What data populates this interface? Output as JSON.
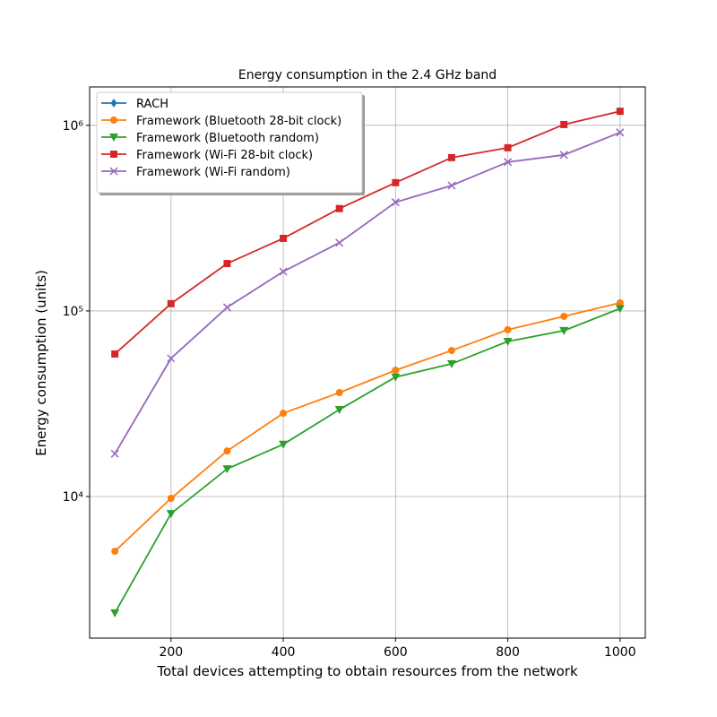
{
  "chart_data": {
    "type": "line",
    "title": "Energy consumption in the 2.4 GHz band",
    "x_label": "Total devices attempting to obtain resources from the network",
    "y_label": "Energy consumption (units)",
    "x": [
      100,
      200,
      300,
      400,
      500,
      600,
      700,
      800,
      900,
      1000
    ],
    "xlim": [
      55,
      1045
    ],
    "xticks": [
      200,
      400,
      600,
      800,
      1000
    ],
    "ylim": [
      1726,
      1610000
    ],
    "yticks": [
      {
        "value": 10000,
        "label": "10⁴"
      },
      {
        "value": 100000,
        "label": "10⁵"
      },
      {
        "value": 1000000,
        "label": "10⁶"
      }
    ],
    "log_y": true,
    "grid": true,
    "legend": "upper left",
    "series": [
      {
        "name": "RACH",
        "color": "#1f77b4",
        "marker": "diamond",
        "values": [
          null,
          null,
          null,
          null,
          null,
          null,
          null,
          null,
          null,
          null
        ]
      },
      {
        "name": "Framework (Bluetooth 28-bit clock)",
        "color": "#ff7f0e",
        "marker": "circle",
        "values": [
          5070,
          9780,
          17600,
          28100,
          36300,
          47900,
          61200,
          79200,
          93500,
          110500
        ]
      },
      {
        "name": "Framework (Bluetooth random)",
        "color": "#2ca02c",
        "marker": "triangle-down",
        "values": [
          2360,
          8090,
          14100,
          19100,
          29400,
          44000,
          51900,
          68500,
          78300,
          103000
        ]
      },
      {
        "name": "Framework (Wi-Fi 28-bit clock)",
        "color": "#d62728",
        "marker": "square",
        "values": [
          58600,
          109400,
          180000,
          246000,
          356000,
          491000,
          670000,
          757000,
          1010000,
          1190000
        ]
      },
      {
        "name": "Framework (Wi-Fi random)",
        "color": "#9467bd",
        "marker": "x",
        "values": [
          17000,
          55500,
          104500,
          163000,
          233000,
          385000,
          474000,
          634000,
          693000,
          915000
        ]
      }
    ]
  }
}
